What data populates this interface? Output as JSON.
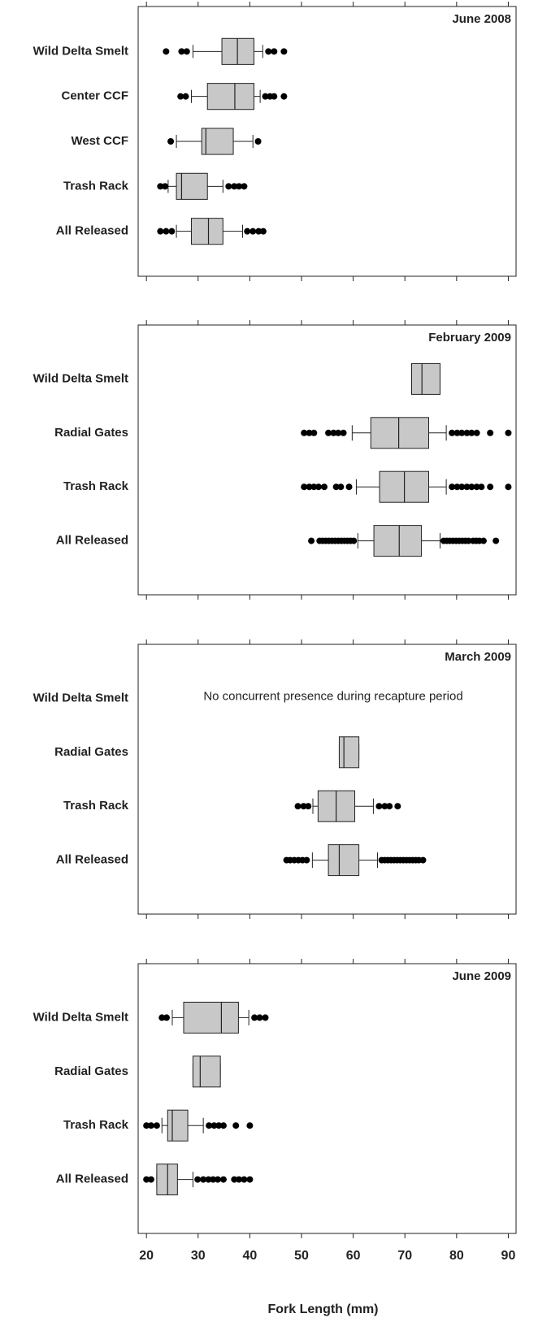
{
  "chart_data": [
    {
      "type": "boxplot",
      "title": "June 2008",
      "color": "#c8c8c8",
      "categories": [
        "Wild Delta Smelt",
        "Center CCF",
        "West CCF",
        "Trash Rack",
        "All Released"
      ],
      "boxes": [
        {
          "whislo": 29,
          "q1": 34.6,
          "med": 37.6,
          "q3": 40.8,
          "whishi": 42.5,
          "fliers": [
            23.8,
            26.8,
            27.8,
            43.6,
            44.7,
            46.6
          ]
        },
        {
          "whislo": 28.7,
          "q1": 31.8,
          "med": 37.1,
          "q3": 40.8,
          "whishi": 42,
          "fliers": [
            26.6,
            27.6,
            43,
            43.9,
            44.7,
            46.6
          ]
        },
        {
          "whislo": 25.8,
          "q1": 30.7,
          "med": 31.5,
          "q3": 36.8,
          "whishi": 40.6,
          "fliers": [
            24.7,
            41.6
          ]
        },
        {
          "whislo": 24.2,
          "q1": 25.8,
          "med": 26.8,
          "q3": 31.8,
          "whishi": 34.8,
          "fliers": [
            22.7,
            23.6,
            35.9,
            37,
            37.9,
            38.9
          ]
        },
        {
          "whislo": 25.8,
          "q1": 28.7,
          "med": 32,
          "q3": 34.8,
          "whishi": 38.6,
          "fliers": [
            22.7,
            23.8,
            24.9,
            39.5,
            40.6,
            41.7,
            42.6
          ]
        }
      ],
      "xlim": [
        18.4,
        91.5
      ],
      "xticks": [
        20,
        30,
        40,
        50,
        60,
        70,
        80,
        90
      ],
      "show_tick_labels": false
    },
    {
      "type": "boxplot",
      "title": "February 2009",
      "color": "#c8c8c8",
      "categories": [
        "Wild Delta Smelt",
        "Radial Gates",
        "Trash Rack",
        "All Released"
      ],
      "boxes": [
        {
          "whislo": 71.3,
          "q1": 71.3,
          "med": 73.3,
          "q3": 76.8,
          "whishi": 76.8,
          "fliers": []
        },
        {
          "whislo": 59.8,
          "q1": 63.4,
          "med": 68.8,
          "q3": 74.6,
          "whishi": 78,
          "fliers": [
            50.5,
            51.5,
            52.4,
            55.2,
            56.2,
            57.1,
            58.1,
            79.1,
            80.1,
            81,
            82,
            82.9,
            83.9,
            86.5,
            90
          ]
        },
        {
          "whislo": 60.6,
          "q1": 65.1,
          "med": 69.9,
          "q3": 74.6,
          "whishi": 78,
          "fliers": [
            50.5,
            51.5,
            52.4,
            53.3,
            54.4,
            56.7,
            57.6,
            59.2,
            79.1,
            80.1,
            81,
            82,
            82.9,
            83.9,
            84.8,
            86.5,
            90
          ]
        },
        {
          "whislo": 60.9,
          "q1": 64,
          "med": 68.9,
          "q3": 73.2,
          "whishi": 76.8,
          "fliers": [
            51.9,
            53.5,
            54.1,
            54.7,
            55.3,
            55.9,
            56.5,
            57.1,
            57.7,
            58.3,
            58.9,
            59.5,
            60.1,
            77.5,
            78.1,
            78.7,
            79.3,
            79.9,
            80.5,
            81.1,
            81.7,
            82.3,
            83.2,
            83.8,
            84.4,
            85.2,
            87.6
          ]
        }
      ],
      "xlim": [
        18.4,
        91.5
      ],
      "xticks": [
        20,
        30,
        40,
        50,
        60,
        70,
        80,
        90
      ],
      "show_tick_labels": false
    },
    {
      "type": "boxplot",
      "title": "March 2009",
      "color": "#c8c8c8",
      "categories": [
        "Wild Delta Smelt",
        "Radial Gates",
        "Trash Rack",
        "All Released"
      ],
      "annotation": "No concurrent presence during recapture period",
      "boxes": [
        null,
        {
          "whislo": 57.3,
          "q1": 57.3,
          "med": 58.2,
          "q3": 61.1,
          "whishi": 61.1,
          "fliers": []
        },
        {
          "whislo": 52.2,
          "q1": 53.2,
          "med": 56.7,
          "q3": 60.3,
          "whishi": 63.9,
          "fliers": [
            49.3,
            50.4,
            51.3,
            65,
            66.1,
            67,
            68.6
          ]
        },
        {
          "whislo": 52.1,
          "q1": 55.2,
          "med": 57.3,
          "q3": 61.1,
          "whishi": 64.7,
          "fliers": [
            47.1,
            47.8,
            48.6,
            49.4,
            50.2,
            51,
            65.5,
            66.1,
            66.7,
            67.3,
            67.9,
            68.5,
            69.1,
            69.7,
            70.3,
            70.9,
            71.5,
            72.1,
            72.7,
            73.5
          ]
        }
      ],
      "xlim": [
        18.4,
        91.5
      ],
      "xticks": [
        20,
        30,
        40,
        50,
        60,
        70,
        80,
        90
      ],
      "show_tick_labels": false
    },
    {
      "type": "boxplot",
      "title": "June 2009",
      "color": "#c8c8c8",
      "categories": [
        "Wild Delta Smelt",
        "Radial Gates",
        "Trash Rack",
        "All Released"
      ],
      "boxes": [
        {
          "whislo": 25,
          "q1": 27.2,
          "med": 34.5,
          "q3": 37.8,
          "whishi": 39.8,
          "fliers": [
            23,
            23.9,
            40.9,
            41.9,
            43
          ]
        },
        {
          "whislo": 29,
          "q1": 29,
          "med": 30.4,
          "q3": 34.3,
          "whishi": 34.3,
          "fliers": []
        },
        {
          "whislo": 23,
          "q1": 24.1,
          "med": 25,
          "q3": 28,
          "whishi": 31,
          "fliers": [
            20,
            20.9,
            22,
            32.1,
            33.1,
            34,
            34.9,
            37.3,
            40
          ]
        },
        {
          "whislo": 22,
          "q1": 22,
          "med": 24.1,
          "q3": 26,
          "whishi": 29,
          "fliers": [
            20,
            20.9,
            29.9,
            31,
            32,
            32.9,
            33.8,
            34.9,
            37,
            37.9,
            38.9,
            40
          ]
        }
      ],
      "xlim": [
        18.4,
        91.5
      ],
      "xticks": [
        20,
        30,
        40,
        50,
        60,
        70,
        80,
        90
      ],
      "show_tick_labels": true,
      "xlabel": "Fork Length (mm)"
    }
  ]
}
